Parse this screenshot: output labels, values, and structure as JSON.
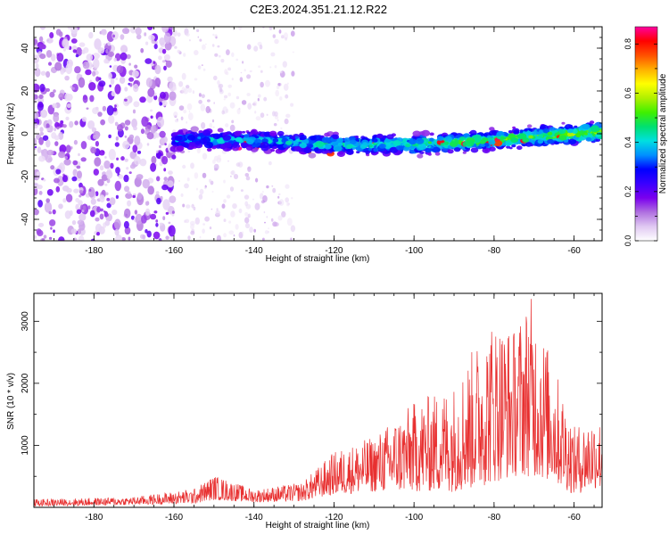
{
  "page_title": "C2E3.2024.351.21.12.R22",
  "chart_data": [
    {
      "type": "heatmap",
      "xlabel": "Height of straight line (km)",
      "ylabel": "Frequency (Hz)",
      "xlim": [
        -195,
        -53
      ],
      "ylim": [
        -50,
        50
      ],
      "xticks": [
        -180,
        -160,
        -140,
        -120,
        -100,
        -80,
        -60
      ],
      "yticks": [
        -40,
        -20,
        0,
        20,
        40
      ],
      "colorbar": {
        "label": "Normalized spectral amplitude",
        "range": [
          0.0,
          0.87
        ],
        "ticks": [
          0.0,
          0.2,
          0.4,
          0.6,
          0.8
        ],
        "colormap": [
          "#ffffff",
          "#e0c8f2",
          "#b070e0",
          "#7a00ee",
          "#3a00ff",
          "#0000ff",
          "#0090ff",
          "#00e0e0",
          "#00e070",
          "#40f000",
          "#b0f000",
          "#ffff00",
          "#ffb000",
          "#ff5000",
          "#ff0000",
          "#ff00a0"
        ]
      },
      "features": {
        "noise_region_km": [
          -195,
          -130
        ],
        "strong_noise_region_km": [
          -195,
          -160
        ],
        "signal_band_start_km": -160,
        "signal_band_center_hz": [
          [
            -160,
            -3
          ],
          [
            -140,
            -3
          ],
          [
            -120,
            -5
          ],
          [
            -100,
            -5
          ],
          [
            -80,
            -3
          ],
          [
            -60,
            0
          ],
          [
            -53,
            1
          ]
        ],
        "signal_band_halfwidth_hz": 4
      }
    },
    {
      "type": "line",
      "xlabel": "Height of straight line (km)",
      "ylabel": "SNR (10 * v/v)",
      "xlim": [
        -195,
        -53
      ],
      "ylim": [
        0,
        3450
      ],
      "xticks": [
        -180,
        -160,
        -140,
        -120,
        -100,
        -80,
        -60
      ],
      "yticks": [
        1000,
        2000,
        3000
      ],
      "line_color": "#e83030",
      "envelope": [
        {
          "x": -195,
          "low": 20,
          "high": 130
        },
        {
          "x": -170,
          "low": 40,
          "high": 170
        },
        {
          "x": -155,
          "low": 60,
          "high": 300
        },
        {
          "x": -150,
          "low": 120,
          "high": 520
        },
        {
          "x": -140,
          "low": 80,
          "high": 290
        },
        {
          "x": -128,
          "low": 100,
          "high": 400
        },
        {
          "x": -120,
          "low": 200,
          "high": 900
        },
        {
          "x": -110,
          "low": 250,
          "high": 1150
        },
        {
          "x": -100,
          "low": 250,
          "high": 1700
        },
        {
          "x": -90,
          "low": 250,
          "high": 2000
        },
        {
          "x": -85,
          "low": 300,
          "high": 2600
        },
        {
          "x": -80,
          "low": 400,
          "high": 3100
        },
        {
          "x": -75,
          "low": 500,
          "high": 2900
        },
        {
          "x": -71,
          "low": 500,
          "high": 3450
        },
        {
          "x": -65,
          "low": 400,
          "high": 2300
        },
        {
          "x": -60,
          "low": 200,
          "high": 1300
        },
        {
          "x": -55,
          "low": 300,
          "high": 1500
        },
        {
          "x": -53,
          "low": 300,
          "high": 1400
        }
      ]
    }
  ]
}
